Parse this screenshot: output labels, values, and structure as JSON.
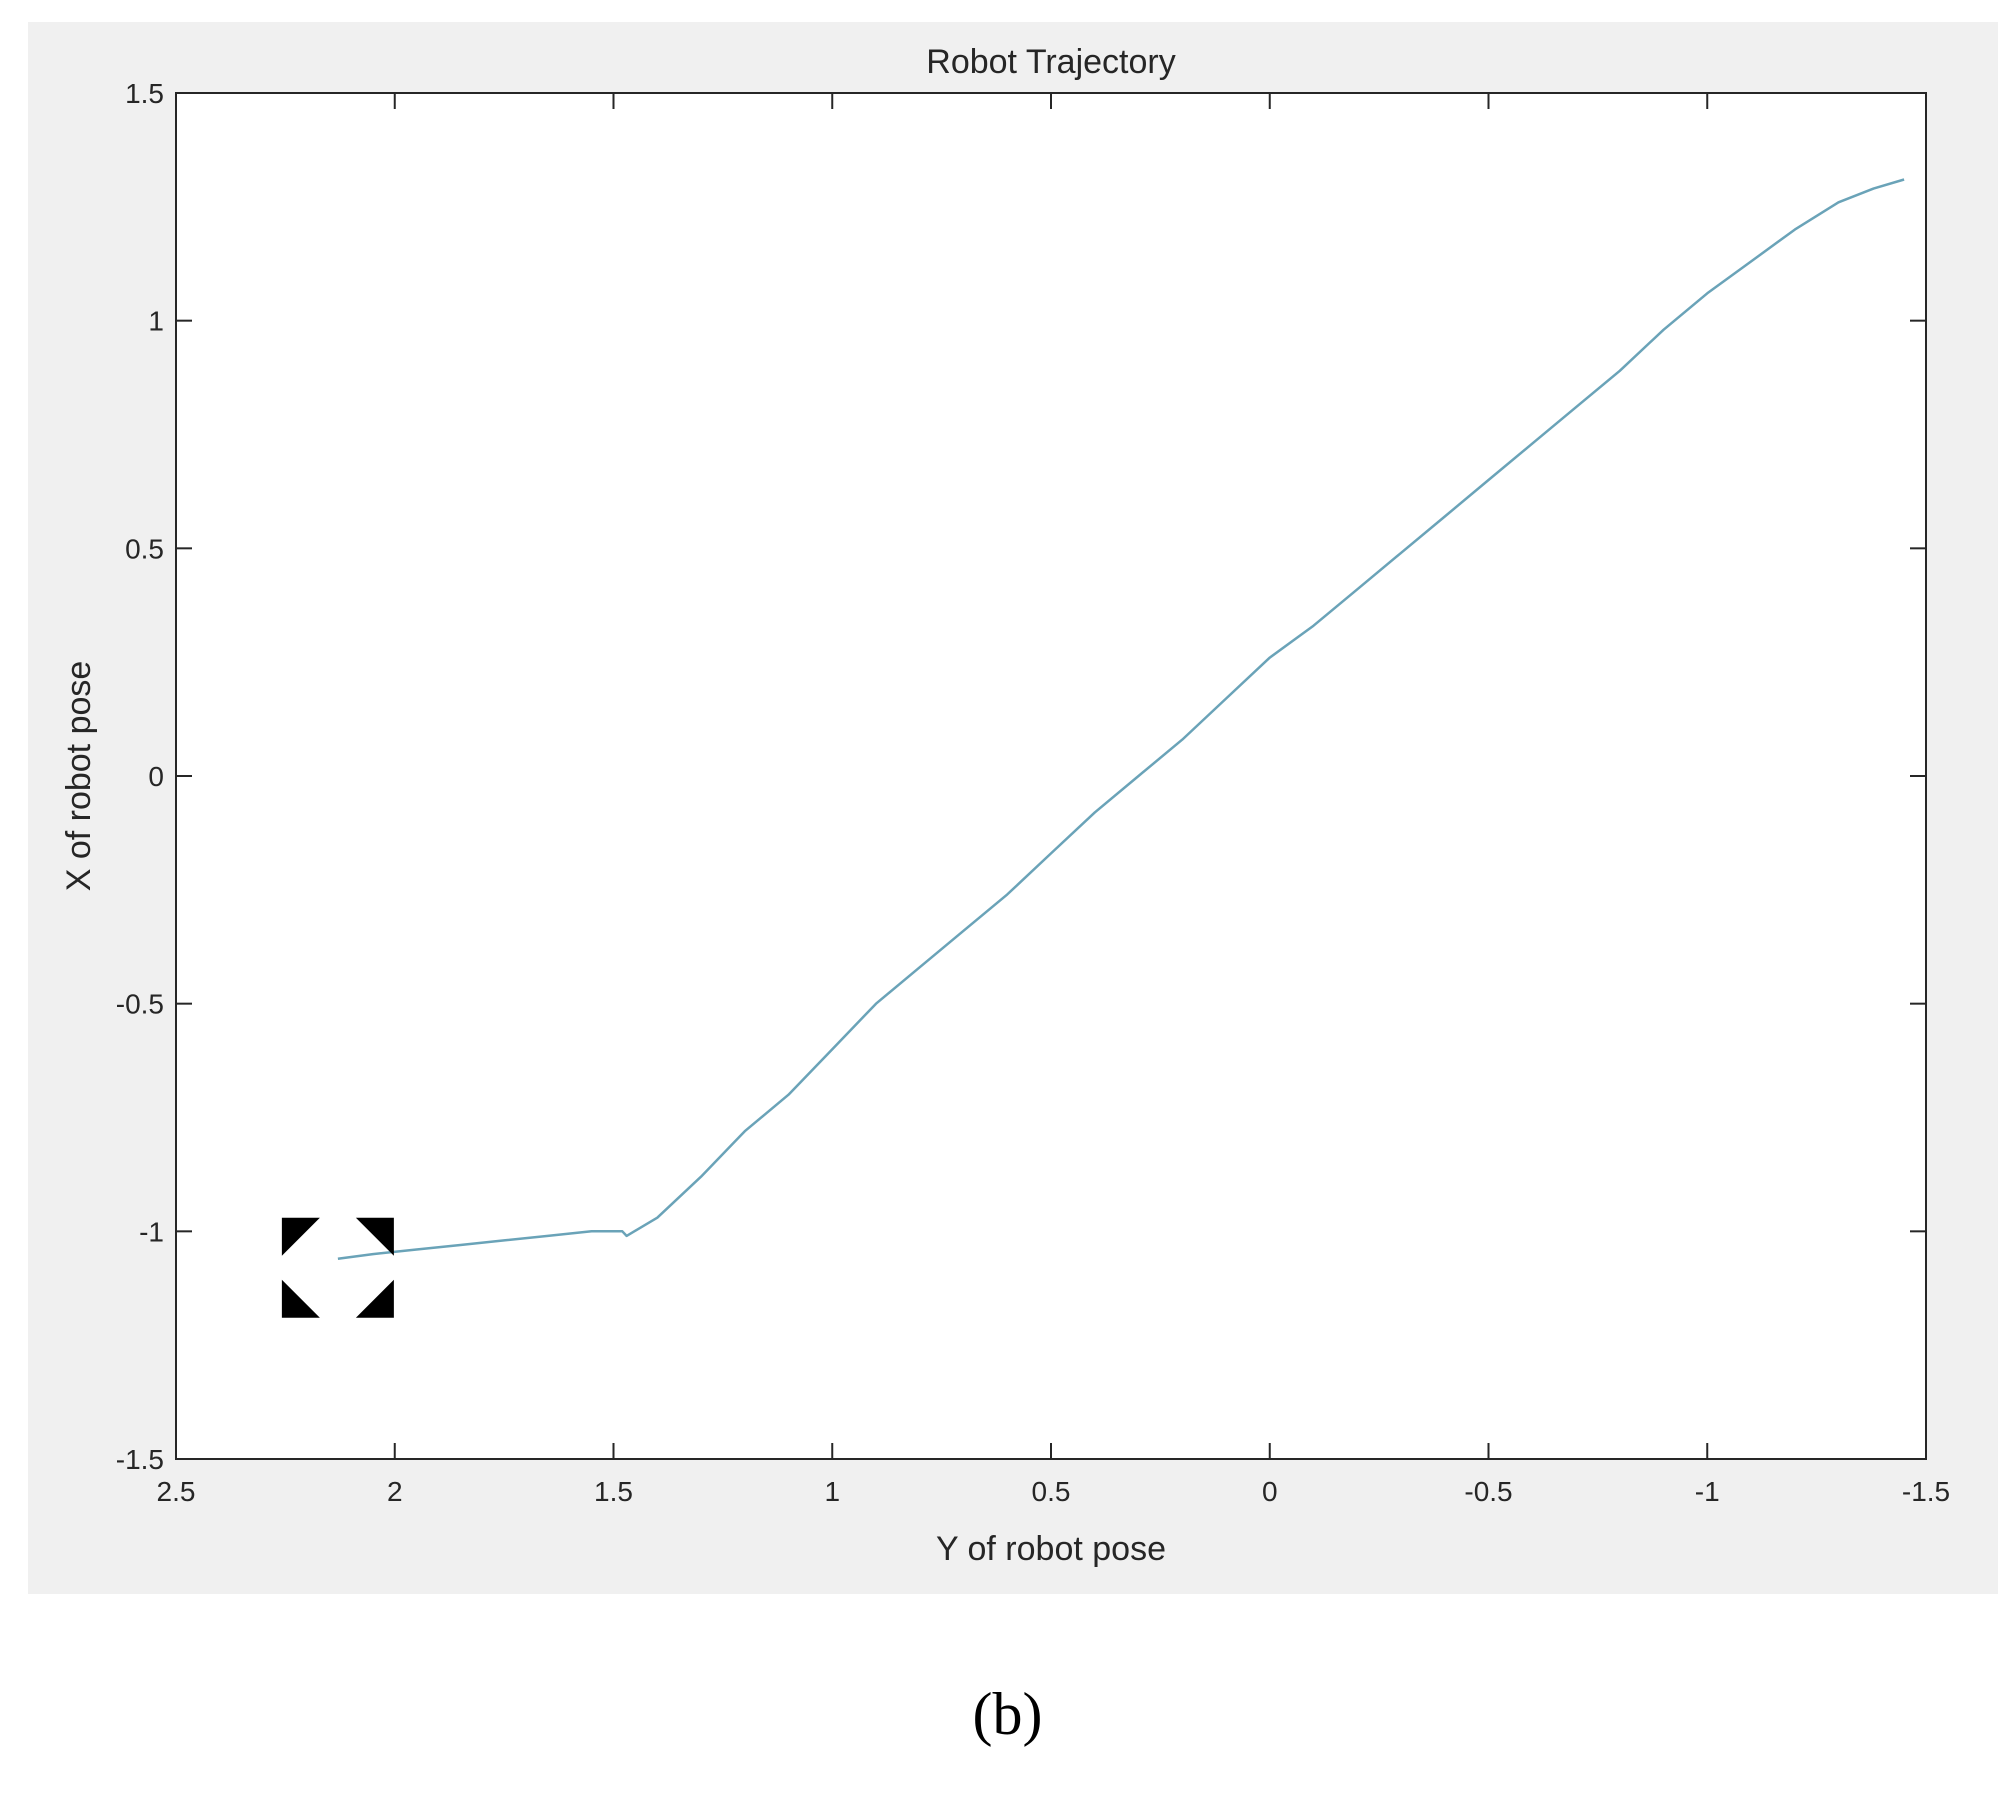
{
  "caption": "(b)",
  "colors": {
    "line": "#6aa3b8",
    "axes": "#262626",
    "panel_background": "#f0f0f0",
    "plot_background": "#ffffff",
    "marker": "#000000"
  },
  "icons": {
    "start_marker": "focus-corners-icon"
  },
  "chart_data": {
    "type": "line",
    "title": "Robot Trajectory",
    "xlabel": "Y of robot pose",
    "ylabel": "X of robot pose",
    "xlim": [
      2.5,
      -1.5
    ],
    "ylim": [
      -1.5,
      1.5
    ],
    "x_reversed": true,
    "grid": false,
    "xticks": [
      2.5,
      2,
      1.5,
      1,
      0.5,
      0,
      -0.5,
      -1,
      -1.5
    ],
    "xtick_labels": [
      "2.5",
      "2",
      "1.5",
      "1",
      "0.5",
      "0",
      "-0.5",
      "-1",
      "-1.5"
    ],
    "yticks": [
      1.5,
      1,
      0.5,
      0,
      -0.5,
      -1,
      -1.5
    ],
    "ytick_labels": [
      "1.5",
      "1",
      "0.5",
      "0",
      "-0.5",
      "-1",
      "-1.5"
    ],
    "series": [
      {
        "x": [
          2.13,
          2.05,
          1.95,
          1.85,
          1.75,
          1.65,
          1.55,
          1.48,
          1.47,
          1.4,
          1.3,
          1.2,
          1.1,
          1.0,
          0.9,
          0.8,
          0.7,
          0.6,
          0.5,
          0.4,
          0.3,
          0.2,
          0.1,
          0.0,
          -0.1,
          -0.2,
          -0.3,
          -0.4,
          -0.5,
          -0.6,
          -0.7,
          -0.8,
          -0.9,
          -1.0,
          -1.1,
          -1.2,
          -1.3,
          -1.38,
          -1.45
        ],
        "y": [
          -1.06,
          -1.05,
          -1.04,
          -1.03,
          -1.02,
          -1.01,
          -1.0,
          -1.0,
          -1.01,
          -0.97,
          -0.88,
          -0.78,
          -0.7,
          -0.6,
          -0.5,
          -0.42,
          -0.34,
          -0.26,
          -0.17,
          -0.08,
          0.0,
          0.08,
          0.17,
          0.26,
          0.33,
          0.41,
          0.49,
          0.57,
          0.65,
          0.73,
          0.81,
          0.89,
          0.98,
          1.06,
          1.13,
          1.2,
          1.26,
          1.29,
          1.31
        ]
      }
    ],
    "start_marker": {
      "x": 2.13,
      "y": -1.08
    }
  }
}
